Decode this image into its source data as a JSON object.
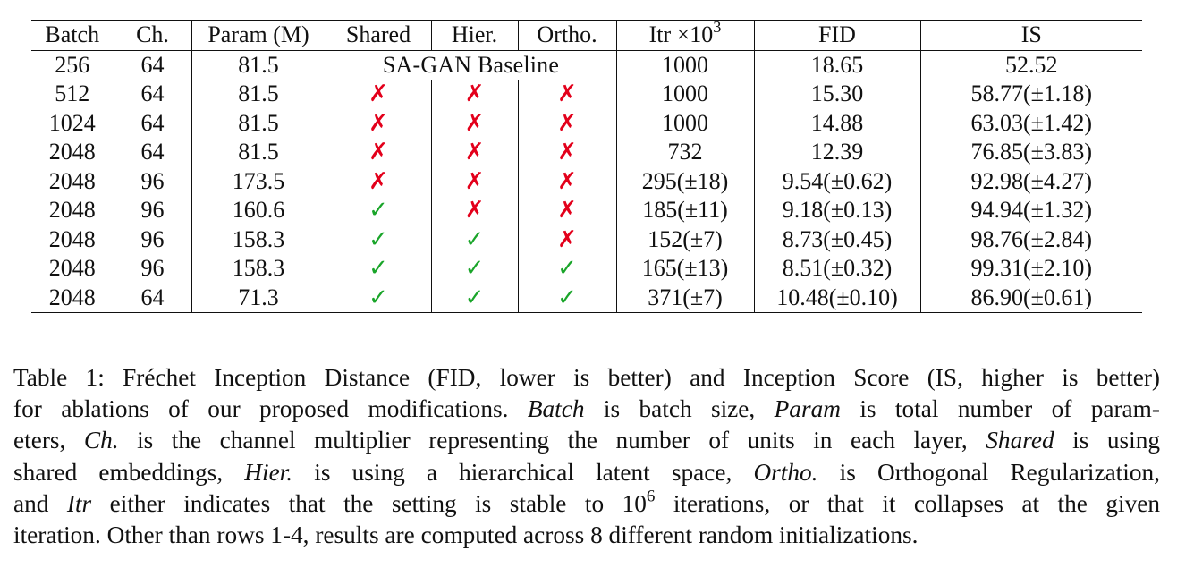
{
  "table": {
    "headers": {
      "batch": "Batch",
      "ch": "Ch.",
      "param": "Param (M)",
      "shared": "Shared",
      "hier": "Hier.",
      "ortho": "Ortho.",
      "itr": "Itr ×10",
      "itr_exp": "3",
      "fid": "FID",
      "is": "IS"
    },
    "baseline_label": "SA-GAN Baseline",
    "check_symbol": "✓",
    "cross_symbol": "✗",
    "rows": [
      {
        "batch": "256",
        "ch": "64",
        "param": "81.5",
        "itr": "1000",
        "fid": "18.65",
        "is": "52.52"
      },
      {
        "batch": "512",
        "ch": "64",
        "param": "81.5",
        "itr": "1000",
        "fid": "15.30",
        "is": "58.77(±1.18)"
      },
      {
        "batch": "1024",
        "ch": "64",
        "param": "81.5",
        "itr": "1000",
        "fid": "14.88",
        "is": "63.03(±1.42)"
      },
      {
        "batch": "2048",
        "ch": "64",
        "param": "81.5",
        "itr": "732",
        "fid": "12.39",
        "is": "76.85(±3.83)"
      },
      {
        "batch": "2048",
        "ch": "96",
        "param": "173.5",
        "itr": "295(±18)",
        "fid": "9.54(±0.62)",
        "is": "92.98(±4.27)"
      },
      {
        "batch": "2048",
        "ch": "96",
        "param": "160.6",
        "itr": "185(±11)",
        "fid": "9.18(±0.13)",
        "is": "94.94(±1.32)"
      },
      {
        "batch": "2048",
        "ch": "96",
        "param": "158.3",
        "itr": "152(±7)",
        "fid": "8.73(±0.45)",
        "is": "98.76(±2.84)"
      },
      {
        "batch": "2048",
        "ch": "96",
        "param": "158.3",
        "itr": "165(±13)",
        "fid": "8.51(±0.32)",
        "is": "99.31(±2.10)"
      },
      {
        "batch": "2048",
        "ch": "64",
        "param": "71.3",
        "itr": "371(±7)",
        "fid": "10.48(±0.10)",
        "is": "86.90(±0.61)"
      }
    ]
  },
  "caption": {
    "l1": "Table 1:  Fréchet Inception Distance (FID, lower is better) and Inception Score (IS, higher is better)",
    "l2_a": "for ablations of our proposed modifications. ",
    "l2_b": "Batch",
    "l2_c": " is batch size, ",
    "l2_d": "Param",
    "l2_e": " is total number of param-",
    "l3_a": "eters, ",
    "l3_b": "Ch.",
    "l3_c": " is the channel multiplier representing the number of units in each layer, ",
    "l3_d": "Shared",
    "l3_e": " is using",
    "l4_a": "shared embeddings, ",
    "l4_b": "Hier.",
    "l4_c": " is using a hierarchical latent space, ",
    "l4_d": "Ortho.",
    "l4_e": " is Orthogonal Regularization,",
    "l5_a": "and ",
    "l5_b": "Itr",
    "l5_c": " either indicates that the setting is stable to 10",
    "l5_sup": "6",
    "l5_d": " iterations, or that it collapses at the given",
    "l6": "iteration. Other than rows 1-4, results are computed across 8 different random initializations."
  }
}
